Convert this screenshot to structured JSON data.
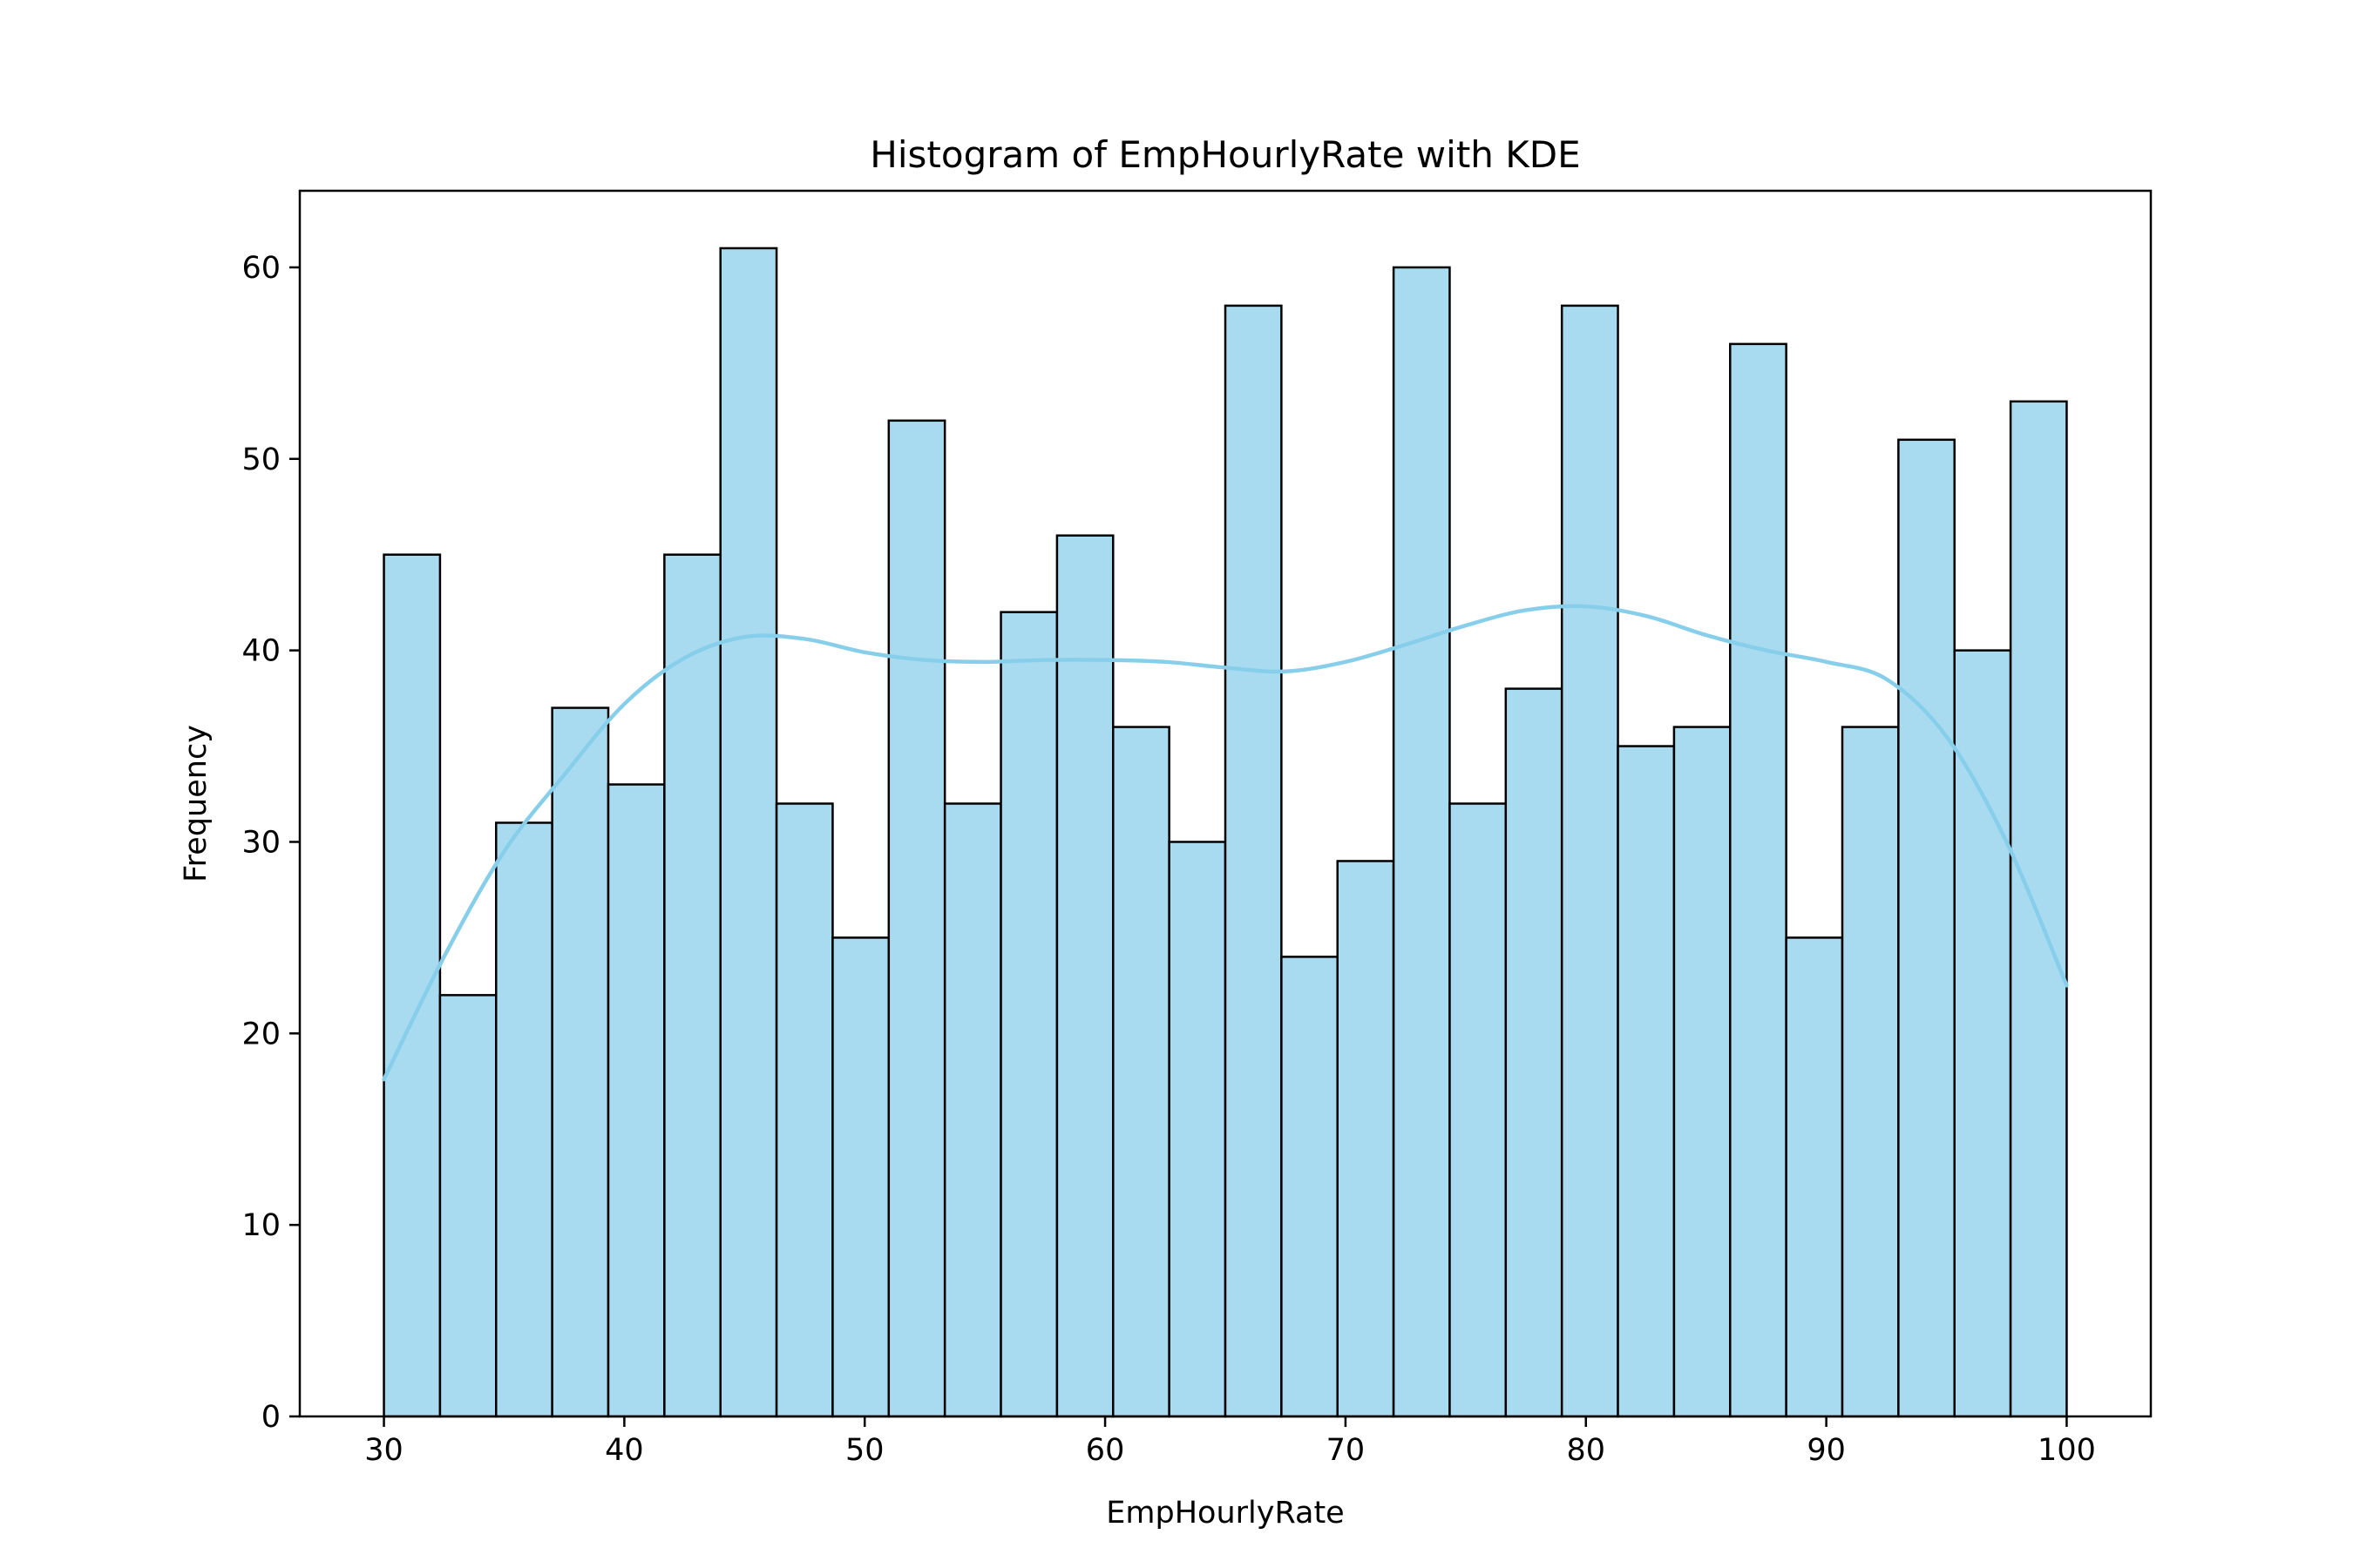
{
  "chart_data": {
    "type": "bar",
    "title": "Histogram of EmpHourlyRate with KDE",
    "xlabel": "EmpHourlyRate",
    "ylabel": "Frequency",
    "xlim": [
      26.5,
      103.5
    ],
    "ylim": [
      0,
      64
    ],
    "xticks": [
      30,
      40,
      50,
      60,
      70,
      80,
      90,
      100
    ],
    "yticks": [
      0,
      10,
      20,
      30,
      40,
      50,
      60
    ],
    "bins": {
      "start": 30,
      "end": 100,
      "count": 30,
      "values": [
        45,
        22,
        31,
        37,
        33,
        45,
        61,
        32,
        25,
        52,
        32,
        42,
        46,
        36,
        30,
        58,
        24,
        29,
        60,
        32,
        38,
        58,
        35,
        36,
        56,
        25,
        36,
        51,
        40,
        53
      ]
    },
    "kde": {
      "x": [
        30,
        32.5,
        35,
        37.5,
        40,
        42.5,
        45,
        47.5,
        50,
        52.5,
        55,
        57.5,
        60,
        62.5,
        65,
        67.5,
        70,
        72.5,
        75,
        77.5,
        80,
        82.5,
        85,
        87.5,
        90,
        92.5,
        95,
        97.5,
        100
      ],
      "y": [
        17.6,
        24,
        29.5,
        33.5,
        37.2,
        39.6,
        40.7,
        40.6,
        39.9,
        39.5,
        39.4,
        39.5,
        39.5,
        39.4,
        39.1,
        38.9,
        39.4,
        40.3,
        41.3,
        42.1,
        42.3,
        41.8,
        40.8,
        40,
        39.4,
        38.5,
        35.5,
        30,
        22.5
      ]
    },
    "colors": {
      "bar_fill": "#a9dbf0",
      "bar_edge": "#000000",
      "kde_line": "#87ceeb"
    },
    "grid": false,
    "legend": "none"
  }
}
